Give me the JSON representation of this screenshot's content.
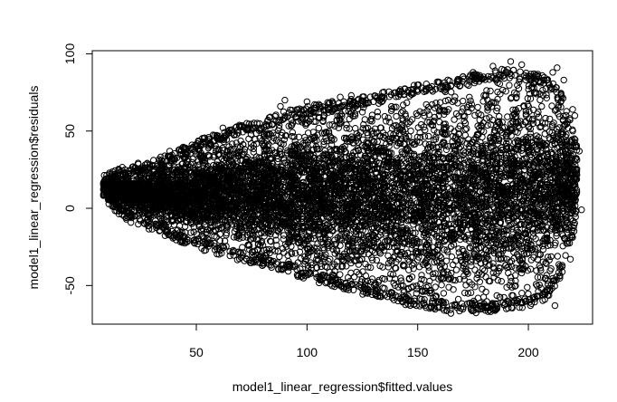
{
  "chart_data": {
    "type": "scatter",
    "title": "",
    "xlabel": "model1_linear_regression$fitted.values",
    "ylabel": "model1_linear_regression$residuals",
    "xlim": [
      3,
      229
    ],
    "ylim": [
      -75,
      102
    ],
    "x_ticks": [
      50,
      100,
      150,
      200
    ],
    "y_ticks": [
      -50,
      0,
      50,
      100
    ],
    "x_tick_labels": [
      "50",
      "100",
      "150",
      "200"
    ],
    "y_tick_labels": [
      "-50",
      "0",
      "50",
      "100"
    ],
    "grid": false,
    "marker": "open-circle",
    "color": "#000000",
    "background": "#ffffff",
    "series": [
      {
        "description": "dense point cloud forming a fan shape widening from fitted ~10 to ~210",
        "envelope": [
          {
            "x": 8,
            "y_min": 8,
            "y_max": 19
          },
          {
            "x": 20,
            "y_min": -5,
            "y_max": 24
          },
          {
            "x": 30,
            "y_min": -10,
            "y_max": 27
          },
          {
            "x": 40,
            "y_min": -17,
            "y_max": 33
          },
          {
            "x": 50,
            "y_min": -22,
            "y_max": 40
          },
          {
            "x": 60,
            "y_min": -26,
            "y_max": 45
          },
          {
            "x": 70,
            "y_min": -30,
            "y_max": 50
          },
          {
            "x": 80,
            "y_min": -33,
            "y_max": 53
          },
          {
            "x": 90,
            "y_min": -38,
            "y_max": 59
          },
          {
            "x": 100,
            "y_min": -42,
            "y_max": 62
          },
          {
            "x": 110,
            "y_min": -46,
            "y_max": 65
          },
          {
            "x": 120,
            "y_min": -50,
            "y_max": 67
          },
          {
            "x": 130,
            "y_min": -53,
            "y_max": 70
          },
          {
            "x": 140,
            "y_min": -57,
            "y_max": 73
          },
          {
            "x": 150,
            "y_min": -60,
            "y_max": 76
          },
          {
            "x": 160,
            "y_min": -62,
            "y_max": 78
          },
          {
            "x": 170,
            "y_min": -63,
            "y_max": 81
          },
          {
            "x": 180,
            "y_min": -64,
            "y_max": 84
          },
          {
            "x": 190,
            "y_min": -61,
            "y_max": 86
          },
          {
            "x": 200,
            "y_min": -60,
            "y_max": 84
          },
          {
            "x": 208,
            "y_min": -55,
            "y_max": 82
          },
          {
            "x": 215,
            "y_min": -40,
            "y_max": 70
          },
          {
            "x": 222,
            "y_min": -5,
            "y_max": 40
          }
        ],
        "outliers": [
          {
            "x": 192,
            "y": 95
          },
          {
            "x": 197,
            "y": 93
          },
          {
            "x": 184,
            "y": 92
          },
          {
            "x": 188,
            "y": 90
          },
          {
            "x": 175,
            "y": 88
          },
          {
            "x": 178,
            "y": 86
          },
          {
            "x": 213,
            "y": 91
          },
          {
            "x": 211,
            "y": 88
          },
          {
            "x": 216,
            "y": 83
          },
          {
            "x": 221,
            "y": 60
          },
          {
            "x": 223,
            "y": 37
          },
          {
            "x": 220,
            "y": 64
          },
          {
            "x": 224,
            "y": -1
          },
          {
            "x": 218,
            "y": 52
          },
          {
            "x": 219,
            "y": 22
          },
          {
            "x": 219,
            "y": -33
          },
          {
            "x": 217,
            "y": -12
          },
          {
            "x": 212,
            "y": -63
          },
          {
            "x": 165,
            "y": -68
          },
          {
            "x": 159,
            "y": -64
          },
          {
            "x": 175,
            "y": -63
          },
          {
            "x": 185,
            "y": -65
          },
          {
            "x": 120,
            "y": 73
          },
          {
            "x": 115,
            "y": 72
          },
          {
            "x": 88,
            "y": 66
          },
          {
            "x": 90,
            "y": 70
          },
          {
            "x": 100,
            "y": 69
          },
          {
            "x": 62,
            "y": 52
          },
          {
            "x": 56,
            "y": 42
          },
          {
            "x": 48,
            "y": 41
          },
          {
            "x": 53,
            "y": 43
          },
          {
            "x": 38,
            "y": 37
          },
          {
            "x": 130,
            "y": 69
          },
          {
            "x": 142,
            "y": 74
          },
          {
            "x": 155,
            "y": 78
          }
        ]
      }
    ]
  }
}
